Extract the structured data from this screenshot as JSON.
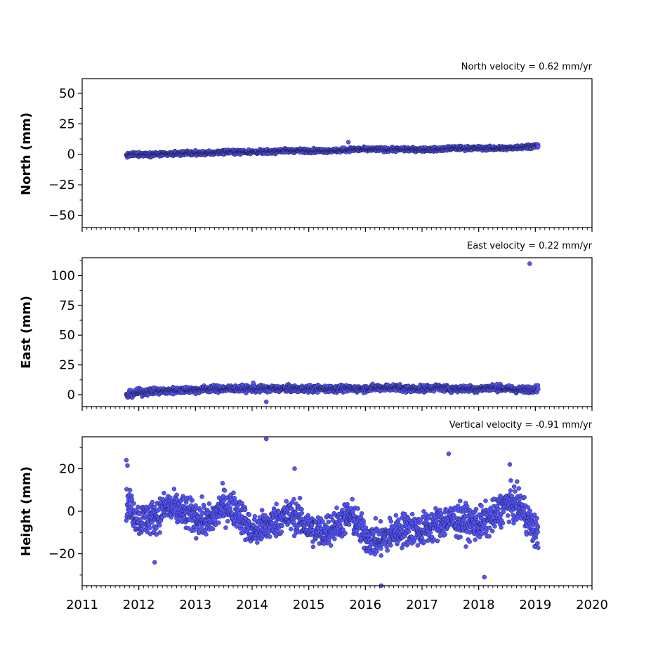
{
  "chart_data": [
    {
      "type": "scatter",
      "title": "North velocity = 0.62 mm/yr",
      "xlabel": "",
      "ylabel": "North (mm)",
      "xlim": [
        2011,
        2020
      ],
      "ylim": [
        -60,
        62
      ],
      "yticks": [
        50,
        25,
        0,
        -25,
        -50
      ],
      "ytick_labels": [
        "50",
        "25",
        "0",
        "−25",
        "−50"
      ],
      "xticks": [
        2011,
        2012,
        2013,
        2014,
        2015,
        2016,
        2017,
        2018,
        2019,
        2020
      ],
      "xtick_labels": [],
      "grid": false,
      "marker_color": "#5555ff",
      "series": [
        {
          "x": [
            2011.78,
            2011.9,
            2012.0,
            2012.25,
            2012.5,
            2012.75,
            2013.0,
            2013.25,
            2013.5,
            2013.75,
            2014.0,
            2014.25,
            2014.5,
            2014.75,
            2015.0,
            2015.25,
            2015.5,
            2015.75,
            2016.0,
            2016.25,
            2016.5,
            2016.75,
            2017.0,
            2017.25,
            2017.5,
            2017.75,
            2018.0,
            2018.25,
            2018.5,
            2018.75,
            2019.0,
            2019.05
          ],
          "y": [
            -1,
            0,
            0,
            0,
            0,
            1,
            1,
            1,
            2,
            2,
            2,
            2,
            3,
            3,
            3,
            3,
            3,
            4,
            4,
            4,
            4,
            4,
            4,
            4,
            5,
            5,
            5,
            5,
            5,
            6,
            7,
            7
          ],
          "outliers": [
            {
              "x": 2015.7,
              "y": 10
            }
          ]
        }
      ]
    },
    {
      "type": "scatter",
      "title": "East velocity = 0.22 mm/yr",
      "xlabel": "",
      "ylabel": "East (mm)",
      "xlim": [
        2011,
        2020
      ],
      "ylim": [
        -10,
        115
      ],
      "yticks": [
        100,
        75,
        50,
        25,
        0
      ],
      "ytick_labels": [
        "100",
        "75",
        "50",
        "25",
        "0"
      ],
      "xticks": [
        2011,
        2012,
        2013,
        2014,
        2015,
        2016,
        2017,
        2018,
        2019,
        2020
      ],
      "xtick_labels": [],
      "grid": false,
      "marker_color": "#5555ff",
      "series": [
        {
          "x": [
            2011.78,
            2011.9,
            2012.0,
            2012.25,
            2012.5,
            2012.75,
            2013.0,
            2013.25,
            2013.5,
            2013.75,
            2014.0,
            2014.25,
            2014.5,
            2014.75,
            2015.0,
            2015.25,
            2015.5,
            2015.75,
            2016.0,
            2016.25,
            2016.5,
            2016.75,
            2017.0,
            2017.25,
            2017.5,
            2017.75,
            2018.0,
            2018.25,
            2018.5,
            2018.75,
            2019.0,
            2019.05
          ],
          "y": [
            -1,
            1,
            2,
            3,
            3,
            4,
            4,
            5,
            5,
            5,
            5,
            5,
            5,
            5,
            5,
            5,
            5,
            5,
            5,
            6,
            6,
            5,
            5,
            6,
            5,
            5,
            5,
            6,
            5,
            4,
            5,
            5
          ],
          "outliers": [
            {
              "x": 2018.9,
              "y": 110
            },
            {
              "x": 2014.25,
              "y": -6
            },
            {
              "x": 2014.02,
              "y": 10
            }
          ]
        }
      ]
    },
    {
      "type": "scatter",
      "title": "Vertical velocity = -0.91 mm/yr",
      "xlabel": "",
      "ylabel": "Height (mm)",
      "xlim": [
        2011,
        2020
      ],
      "ylim": [
        -35,
        35
      ],
      "yticks": [
        20,
        0,
        -20
      ],
      "ytick_labels": [
        "20",
        "0",
        "−20"
      ],
      "xticks": [
        2011,
        2012,
        2013,
        2014,
        2015,
        2016,
        2017,
        2018,
        2019,
        2020
      ],
      "xtick_labels": [
        "2011",
        "2012",
        "2013",
        "2014",
        "2015",
        "2016",
        "2017",
        "2018",
        "2019",
        "2020"
      ],
      "grid": false,
      "marker_color": "#5555ff",
      "series": [
        {
          "x": [
            2011.78,
            2011.9,
            2012.0,
            2012.25,
            2012.5,
            2012.75,
            2013.0,
            2013.25,
            2013.5,
            2013.75,
            2014.0,
            2014.25,
            2014.5,
            2014.75,
            2015.0,
            2015.25,
            2015.5,
            2015.75,
            2016.0,
            2016.25,
            2016.5,
            2016.75,
            2017.0,
            2017.25,
            2017.5,
            2017.75,
            2018.0,
            2018.25,
            2018.5,
            2018.75,
            2019.0,
            2019.05
          ],
          "y": [
            4,
            0,
            -4,
            -3,
            2,
            0,
            -3,
            -5,
            3,
            0,
            -10,
            -7,
            -3,
            -2,
            -8,
            -10,
            -6,
            -2,
            -12,
            -14,
            -10,
            -8,
            -9,
            -6,
            -4,
            -5,
            -6,
            -3,
            4,
            2,
            -10,
            -10
          ],
          "outliers": [
            {
              "x": 2014.25,
              "y": 34
            },
            {
              "x": 2011.78,
              "y": 24
            },
            {
              "x": 2011.8,
              "y": 21.5
            },
            {
              "x": 2017.47,
              "y": 27
            },
            {
              "x": 2014.75,
              "y": 20
            },
            {
              "x": 2018.55,
              "y": 22
            },
            {
              "x": 2016.28,
              "y": -35
            },
            {
              "x": 2018.1,
              "y": -31
            },
            {
              "x": 2012.28,
              "y": -24
            }
          ]
        }
      ]
    }
  ]
}
